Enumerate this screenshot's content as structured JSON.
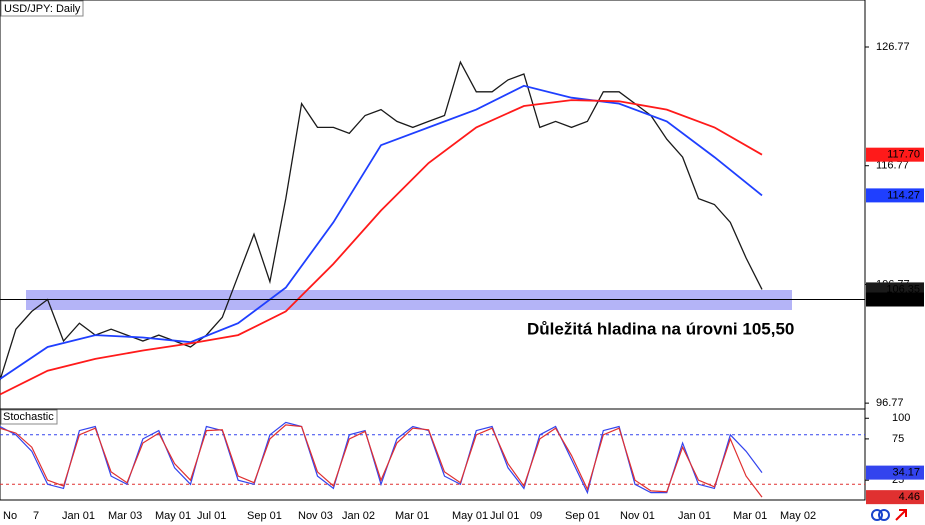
{
  "chart_data": {
    "type": "line",
    "title": "USD/JPY: Daily",
    "annotation": "Důležitá hladina na úrovni 105,50",
    "x_labels": [
      "No",
      "7",
      "Jan 01",
      "Mar 03",
      "May 01",
      "Jul 01",
      "Sep 01",
      "Nov 03",
      "Jan 02",
      "Mar 01",
      "May 01",
      "Jul 01",
      "09",
      "Sep 01",
      "Nov 01",
      "Jan 01",
      "Mar 01",
      "May 02"
    ],
    "ylim": [
      96.36,
      130.73
    ],
    "yticks": [
      126.77,
      116.77,
      106.77,
      96.77
    ],
    "level": {
      "value": 105.5,
      "label": "105.50"
    },
    "series": [
      {
        "color": "#1a1a1a",
        "values": [
          98.7,
          103,
          104.5,
          105.5,
          102,
          103.5,
          102.5,
          103,
          102.5,
          102,
          102.5,
          102,
          101.5,
          102.5,
          104,
          107.5,
          111,
          107,
          114,
          122,
          120,
          120,
          119.5,
          121,
          121.5,
          120.5,
          120,
          120.5,
          121,
          125.5,
          123,
          123,
          124,
          124.5,
          120,
          120.5,
          120,
          120.5,
          123,
          123,
          122,
          121,
          119,
          117.5,
          114,
          113.5,
          112,
          109,
          106.35
        ]
      },
      {
        "color": "#1f3fff",
        "values": [
          98.8,
          101.5,
          102.5,
          102.3,
          101.9,
          103.5,
          106.5,
          112,
          118.5,
          120,
          121.5,
          123.5,
          122.5,
          122,
          120.5,
          117.5,
          114.27
        ]
      },
      {
        "color": "#ff1a1a",
        "values": [
          97.5,
          99.5,
          100.5,
          101.2,
          101.8,
          102.5,
          104.5,
          108.5,
          113,
          117,
          120,
          121.8,
          122.3,
          122.2,
          121.5,
          120,
          117.7
        ],
        "last_label": "117.70"
      }
    ],
    "stochastic": {
      "title": "Stochastic",
      "ylim": [
        1,
        110
      ],
      "yticks": [
        100,
        75,
        25
      ],
      "levels": [
        {
          "value": 80,
          "color": "#3344ee"
        },
        {
          "value": 20,
          "color": "#e03030"
        }
      ],
      "series": [
        {
          "color": "#3344ee",
          "values": [
            90,
            80,
            60,
            20,
            15,
            85,
            90,
            30,
            20,
            75,
            85,
            40,
            20,
            90,
            85,
            25,
            20,
            80,
            95,
            90,
            30,
            15,
            80,
            85,
            20,
            75,
            90,
            85,
            30,
            20,
            85,
            90,
            40,
            15,
            80,
            90,
            50,
            10,
            85,
            90,
            20,
            10,
            10,
            70,
            20,
            15,
            80,
            60,
            34.17
          ]
        },
        {
          "color": "#e03030",
          "values": [
            88,
            82,
            65,
            25,
            18,
            80,
            88,
            35,
            22,
            70,
            82,
            45,
            25,
            85,
            86,
            30,
            22,
            75,
            92,
            90,
            35,
            18,
            75,
            84,
            25,
            70,
            88,
            86,
            35,
            22,
            80,
            88,
            45,
            18,
            75,
            88,
            55,
            14,
            80,
            88,
            25,
            12,
            11,
            65,
            25,
            17,
            75,
            30,
            4.46
          ]
        }
      ]
    }
  }
}
